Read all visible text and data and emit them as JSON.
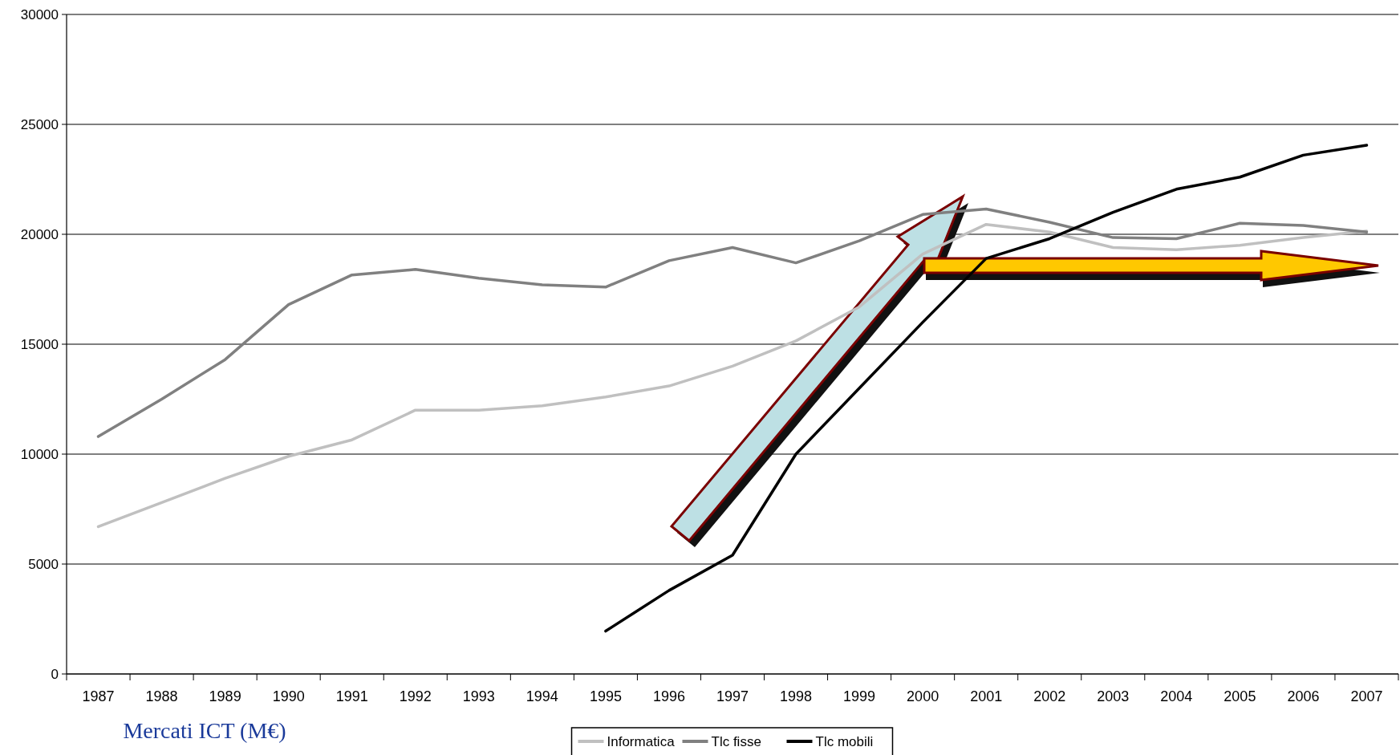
{
  "chart_data": {
    "type": "line",
    "categories": [
      "1987",
      "1988",
      "1989",
      "1990",
      "1991",
      "1992",
      "1993",
      "1994",
      "1995",
      "1996",
      "1997",
      "1998",
      "1999",
      "2000",
      "2001",
      "2002",
      "2003",
      "2004",
      "2005",
      "2006",
      "2007"
    ],
    "series": [
      {
        "name": "Informatica",
        "color": "#c0c0c0",
        "values": [
          6700,
          7800,
          8900,
          9900,
          10650,
          12000,
          12000,
          12200,
          12600,
          13100,
          14000,
          15150,
          16700,
          19100,
          20450,
          20100,
          19400,
          19300,
          19500,
          19850,
          20150
        ]
      },
      {
        "name": "Tlc fisse",
        "color": "#808080",
        "values": [
          10800,
          12500,
          14300,
          16800,
          18150,
          18400,
          18000,
          17700,
          17600,
          18800,
          19400,
          18700,
          19700,
          20900,
          21150,
          20550,
          19850,
          19800,
          20500,
          20400,
          20100
        ]
      },
      {
        "name": "Tlc mobili",
        "color": "#000000",
        "values": [
          null,
          null,
          null,
          null,
          null,
          null,
          null,
          null,
          1950,
          3800,
          5400,
          10000,
          13000,
          16000,
          18900,
          19800,
          21000,
          22050,
          22600,
          23600,
          24050
        ]
      }
    ],
    "ylim": [
      0,
      30000
    ],
    "yticks": [
      0,
      5000,
      10000,
      15000,
      20000,
      25000,
      30000
    ],
    "grid": "y",
    "legend": "bottom",
    "marker": "none",
    "line_style": "solid",
    "annotations": [
      "Mercati ICT (M€)"
    ]
  }
}
